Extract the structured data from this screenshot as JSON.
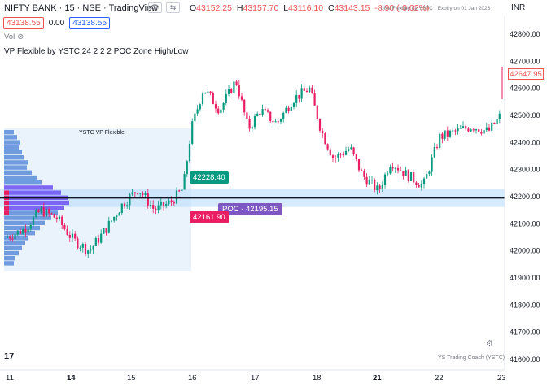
{
  "header": {
    "title": "NIFTY BANK · 15 · NSE · TradingView",
    "ohlc": {
      "o_key": "O",
      "o": "43152.25",
      "h_key": "H",
      "h": "43157.70",
      "l_key": "L",
      "l": "43116.10",
      "c_key": "C",
      "c": "43143.15",
      "change": "-8.90 (-0.02%)"
    },
    "overlay_desc": "ofile Flexible by YSTC · Expiry on 01 Jan 2023",
    "currency": "INR"
  },
  "quote": {
    "bid": "43138.55",
    "spread": "0.00",
    "ask": "43138.55"
  },
  "vol_label": "Vol",
  "indicator_label": "VP Flexible by YSTC 24 2 2 2 POC Zone High/Low",
  "chart_data": {
    "type": "candlestick",
    "y_axis_ticks": [
      42800,
      42700,
      42600,
      42500,
      42400,
      42300,
      42200,
      42100,
      42000,
      41900,
      41800,
      41700,
      41600
    ],
    "ylim": [
      41580,
      42850
    ],
    "x_tick_labels": [
      "11",
      "14",
      "15",
      "16",
      "17",
      "18",
      "21",
      "22",
      "23"
    ],
    "last_price": "42647.95",
    "poc_label": "POC - 42195.15",
    "poc_value": 42195.15,
    "zone_high_label": "42228.40",
    "zone_high": 42228.4,
    "zone_low_label": "42161.90",
    "zone_low": 42161.9,
    "vp_range_label": "YSTC VP Flexible",
    "colors": {
      "up": "#089981",
      "down": "#e91e63",
      "poc": "#131722",
      "zone": "#bbdefb",
      "vp": "#5b5bff"
    }
  },
  "footer": {
    "logo": "17",
    "credit": "YS Trading Coach (YSTC)"
  }
}
